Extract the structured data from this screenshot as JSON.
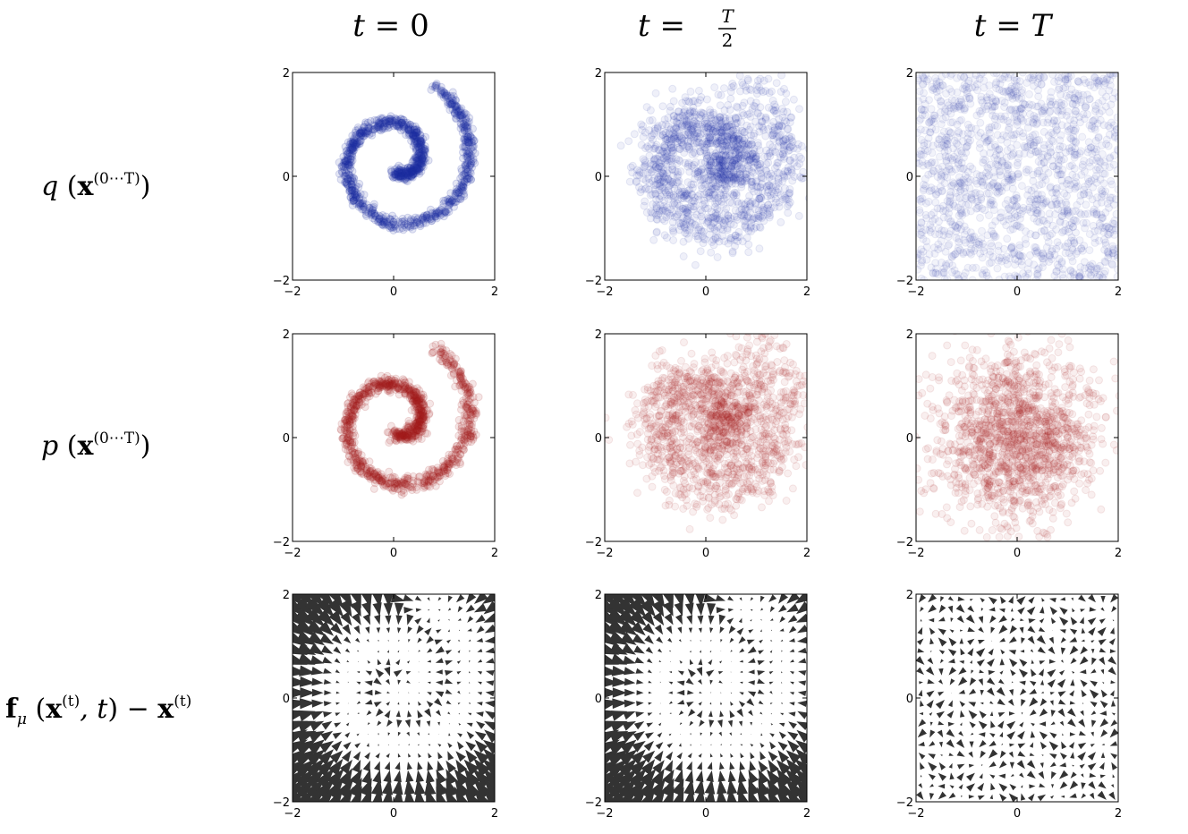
{
  "column_titles": [
    {
      "lhs": "t",
      "eq": " = ",
      "rhs": "0"
    },
    {
      "lhs": "t",
      "eq": " = ",
      "rhs_num": "T",
      "rhs_den": "2"
    },
    {
      "lhs": "t",
      "eq": " = ",
      "rhs": "T"
    }
  ],
  "row_labels": [
    {
      "func": "q",
      "arg": "x",
      "sup": "(0⋯T)"
    },
    {
      "func": "p",
      "arg": "x",
      "sup": "(0⋯T)"
    },
    {
      "func": "f",
      "sub": "μ",
      "arg": "x",
      "sup": "(t)",
      "mid": ", t",
      "minus": " − ",
      "arg2": "x",
      "sup2": "(t)"
    }
  ],
  "colors": {
    "forward": "#1f2fa3",
    "reverse": "#a31f1f",
    "arrows": "#333333"
  },
  "chart_data": [
    {
      "type": "scatter",
      "row": 0,
      "col": 0,
      "series_kind": "spiral",
      "noise": 0.06,
      "opacity": 0.12,
      "color": "#1f2fa3",
      "xlim": [
        -2,
        2
      ],
      "ylim": [
        -2,
        2
      ],
      "xticks": [
        "−2",
        "0",
        "2"
      ],
      "yticks": [
        "−2",
        "0",
        "2"
      ]
    },
    {
      "type": "scatter",
      "row": 0,
      "col": 1,
      "series_kind": "spiral",
      "noise": 0.28,
      "opacity": 0.07,
      "color": "#1f2fa3",
      "xlim": [
        -2,
        2
      ],
      "ylim": [
        -2,
        2
      ],
      "xticks": [
        "−2",
        "0",
        "2"
      ],
      "yticks": [
        "−2",
        "0",
        "2"
      ]
    },
    {
      "type": "scatter",
      "row": 0,
      "col": 2,
      "series_kind": "uniform",
      "noise": 0,
      "opacity": 0.06,
      "color": "#1f2fa3",
      "xlim": [
        -2,
        2
      ],
      "ylim": [
        -2,
        2
      ],
      "xticks": [
        "−2",
        "0",
        "2"
      ],
      "yticks": [
        "−2",
        "0",
        "2"
      ]
    },
    {
      "type": "scatter",
      "row": 1,
      "col": 0,
      "series_kind": "spiral",
      "noise": 0.07,
      "opacity": 0.11,
      "color": "#a31f1f",
      "xlim": [
        -2,
        2
      ],
      "ylim": [
        -2,
        2
      ],
      "xticks": [
        "−2",
        "0",
        "2"
      ],
      "yticks": [
        "−2",
        "0",
        "2"
      ]
    },
    {
      "type": "scatter",
      "row": 1,
      "col": 1,
      "series_kind": "spiral",
      "noise": 0.32,
      "opacity": 0.07,
      "color": "#a31f1f",
      "xlim": [
        -2,
        2
      ],
      "ylim": [
        -2,
        2
      ],
      "xticks": [
        "−2",
        "0",
        "2"
      ],
      "yticks": [
        "−2",
        "0",
        "2"
      ]
    },
    {
      "type": "scatter",
      "row": 1,
      "col": 2,
      "series_kind": "gaussian",
      "noise": 0.8,
      "opacity": 0.07,
      "color": "#a31f1f",
      "xlim": [
        -2,
        2
      ],
      "ylim": [
        -2,
        2
      ],
      "xticks": [
        "−2",
        "0",
        "2"
      ],
      "yticks": [
        "−2",
        "0",
        "2"
      ]
    },
    {
      "type": "quiver",
      "row": 2,
      "col": 0,
      "strength": 1.0,
      "color": "#333333",
      "grid": 20,
      "xlim": [
        -2,
        2
      ],
      "ylim": [
        -2,
        2
      ],
      "xticks": [
        "−2",
        "0",
        "2"
      ],
      "yticks": [
        "−2",
        "0",
        "2"
      ]
    },
    {
      "type": "quiver",
      "row": 2,
      "col": 1,
      "strength": 0.95,
      "color": "#333333",
      "grid": 20,
      "xlim": [
        -2,
        2
      ],
      "ylim": [
        -2,
        2
      ],
      "xticks": [
        "−2",
        "0",
        "2"
      ],
      "yticks": [
        "−2",
        "0",
        "2"
      ]
    },
    {
      "type": "quiver",
      "row": 2,
      "col": 2,
      "strength": 0.25,
      "color": "#333333",
      "grid": 20,
      "xlim": [
        -2,
        2
      ],
      "ylim": [
        -2,
        2
      ],
      "xticks": [
        "−2",
        "0",
        "2"
      ],
      "yticks": [
        "−2",
        "0",
        "2"
      ]
    }
  ]
}
